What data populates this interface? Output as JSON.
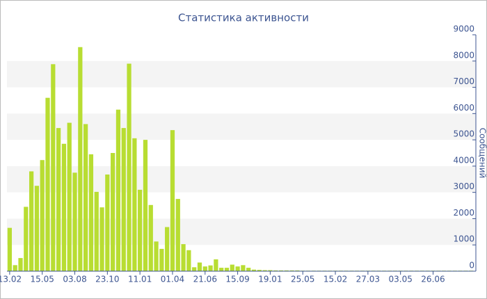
{
  "chart_data": {
    "type": "bar",
    "title": "Статистика активности",
    "y_label": "Сообщений",
    "categories": [
      "13.02",
      null,
      null,
      null,
      null,
      null,
      "15.05",
      null,
      null,
      null,
      null,
      null,
      "03.08",
      null,
      null,
      null,
      null,
      null,
      "23.10",
      null,
      null,
      null,
      null,
      null,
      "11.01",
      null,
      null,
      null,
      null,
      null,
      "01.04",
      null,
      null,
      null,
      null,
      null,
      "21.06",
      null,
      null,
      null,
      null,
      null,
      "15.09",
      null,
      null,
      null,
      null,
      null,
      "19.01",
      null,
      null,
      null,
      null,
      null,
      "25.05",
      null,
      null,
      null,
      null,
      null,
      "15.02",
      null,
      null,
      null,
      null,
      null,
      "27.03",
      null,
      null,
      null,
      null,
      null,
      "03.05",
      null,
      null,
      null,
      null,
      null,
      "26.06",
      null,
      null,
      null,
      null,
      null,
      null,
      null
    ],
    "values": [
      1650,
      230,
      500,
      2450,
      3800,
      3250,
      4230,
      6600,
      7880,
      5450,
      4850,
      5650,
      3750,
      8530,
      5600,
      4450,
      3020,
      2430,
      3680,
      4500,
      6150,
      5450,
      7900,
      5060,
      3100,
      5000,
      2520,
      1130,
      850,
      1680,
      5370,
      2750,
      1030,
      800,
      150,
      330,
      180,
      220,
      450,
      130,
      130,
      250,
      180,
      230,
      130,
      60,
      50,
      40,
      40,
      30,
      30,
      30,
      30,
      30,
      20,
      20,
      20,
      20,
      20,
      20,
      20,
      20,
      20,
      20,
      20,
      20,
      20,
      20,
      20,
      20,
      20,
      20,
      20,
      20,
      20,
      20,
      20,
      20,
      20,
      20,
      20,
      20,
      20,
      20,
      20,
      20
    ],
    "color": "#b8dd32",
    "ylim": [
      0,
      9000
    ],
    "yticks": [
      0,
      1000,
      2000,
      3000,
      4000,
      5000,
      6000,
      7000,
      8000,
      9000
    ],
    "grid": "bands",
    "y_axis_side": "right"
  }
}
